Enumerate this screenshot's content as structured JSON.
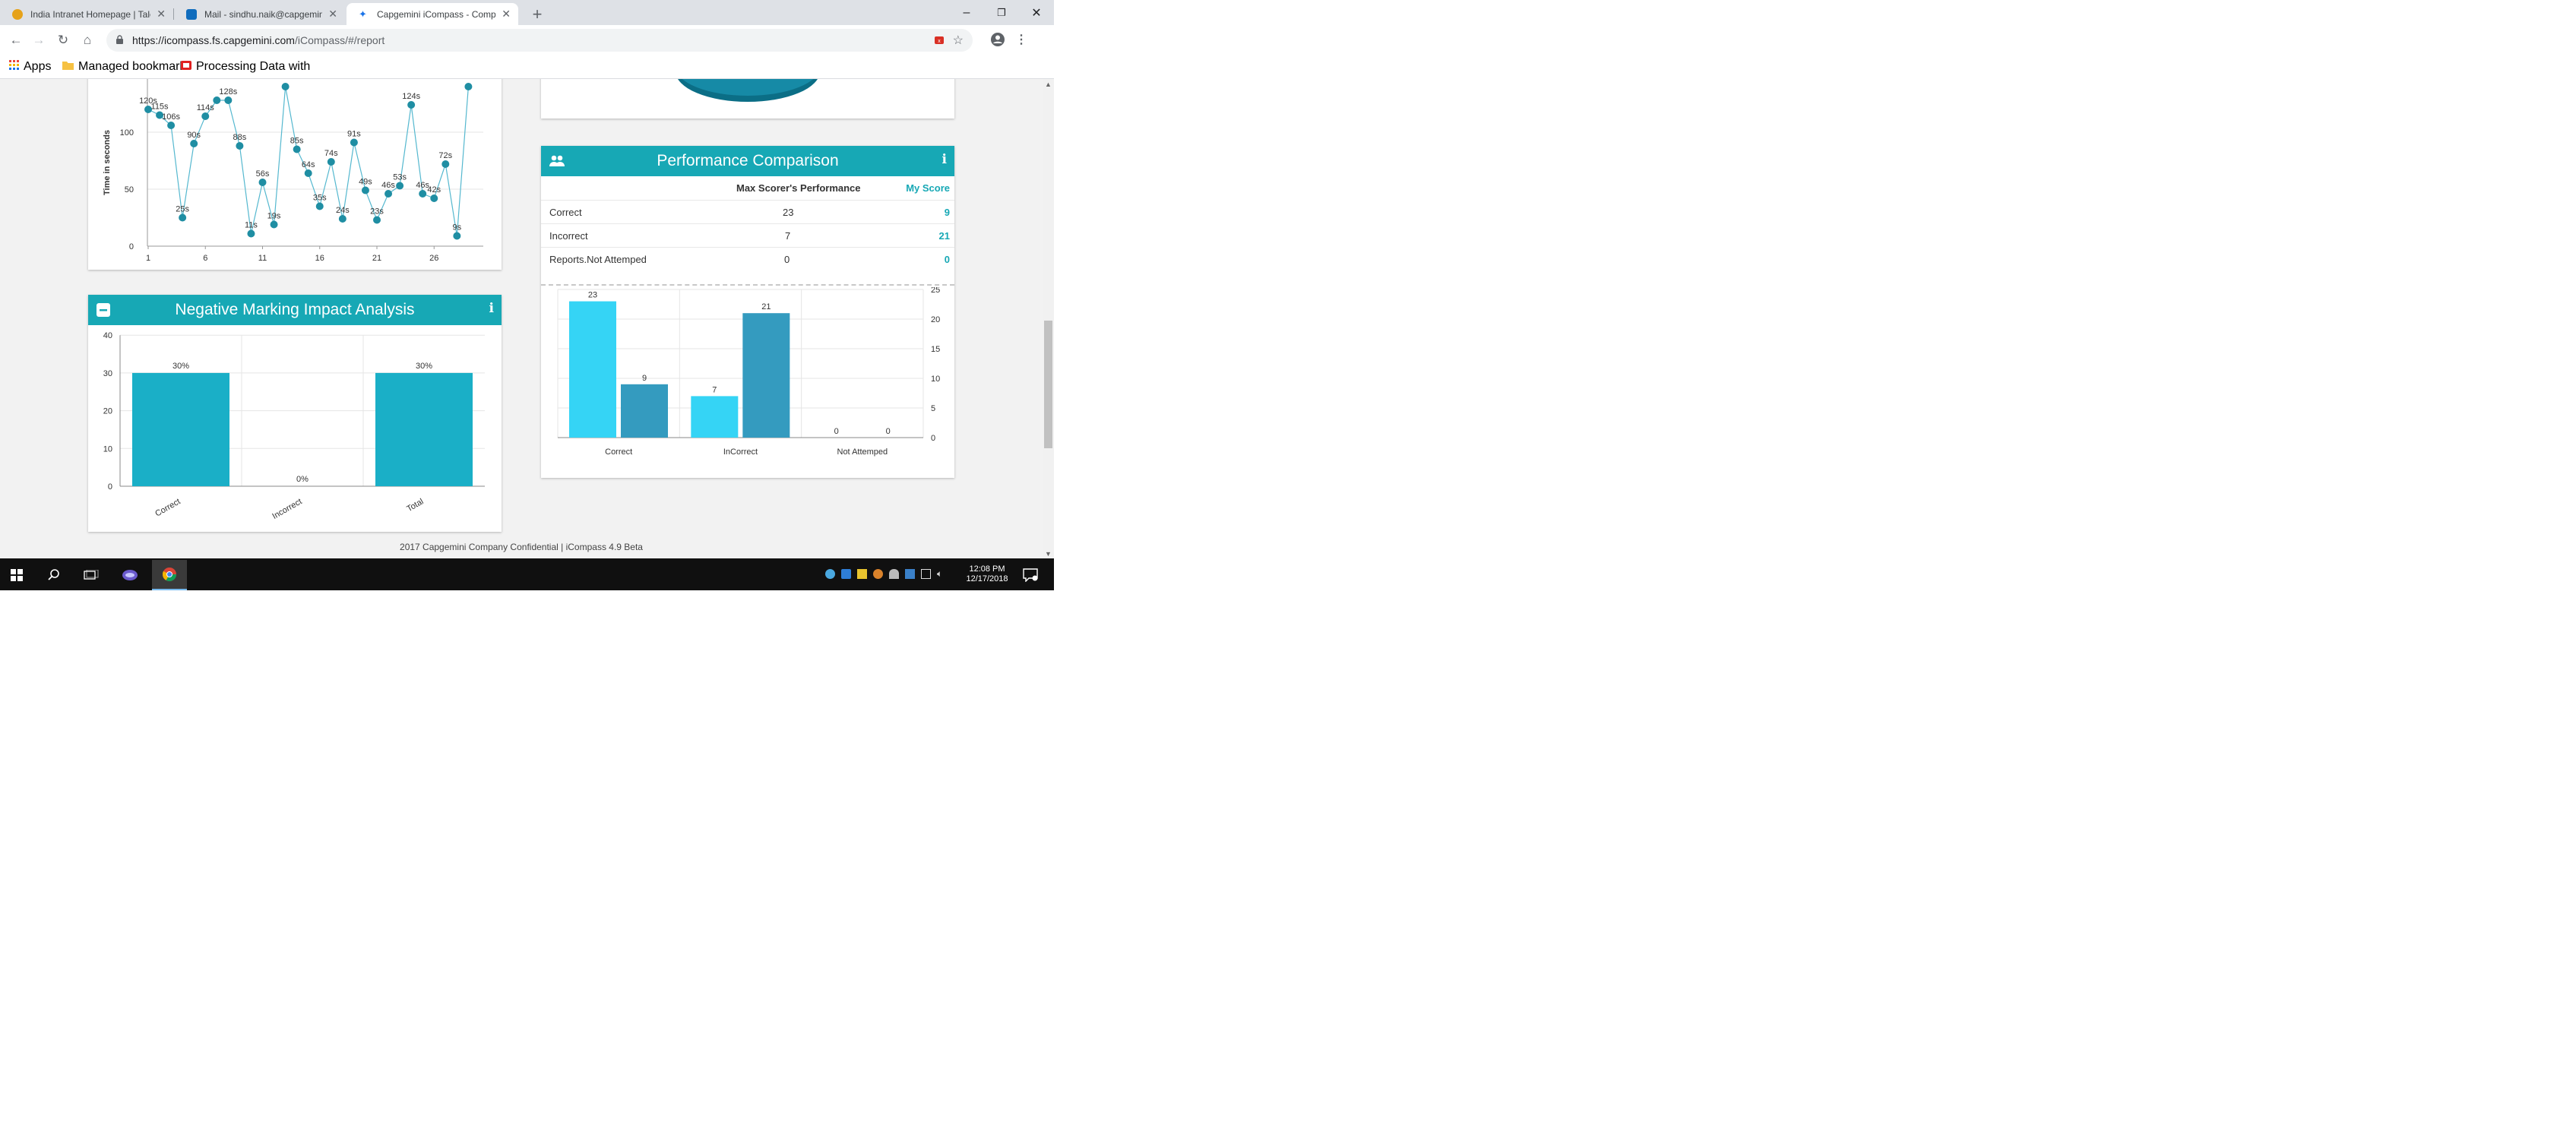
{
  "browser": {
    "tabs": [
      {
        "label": "India Intranet Homepage | Talent",
        "active": false
      },
      {
        "label": "Mail - sindhu.naik@capgemini.co",
        "active": false
      },
      {
        "label": "Capgemini iCompass - Competency",
        "active": true
      }
    ],
    "new_tab": "+",
    "url_host": "https://icompass.fs.capgemini.com",
    "url_path": "/iCompass/#/report",
    "bookmarks": [
      {
        "label": "Apps",
        "icon": "apps-grid-icon"
      },
      {
        "label": "Managed bookmarks",
        "icon": "folder-icon"
      },
      {
        "label": "Processing Data with",
        "icon": "bookmark-red-icon"
      }
    ],
    "window_controls": [
      "–",
      "❐",
      "✕"
    ]
  },
  "time_chart": {
    "ylabel": "Time in seconds",
    "y_ticks": [
      "0",
      "50",
      "100"
    ],
    "x_ticks": [
      "1",
      "6",
      "11",
      "16",
      "21",
      "26"
    ]
  },
  "negative_marking": {
    "title": "Negative Marking Impact Analysis",
    "info_icon": "i"
  },
  "performance": {
    "title": "Performance Comparison",
    "info_icon": "i",
    "col_max": "Max Scorer's Performance",
    "col_my": "My Score",
    "rows": [
      {
        "label": "Correct",
        "max": "23",
        "mine": "9"
      },
      {
        "label": "Incorrect",
        "max": "7",
        "mine": "21"
      },
      {
        "label": "Reports.Not Attemped",
        "max": "0",
        "mine": "0"
      }
    ]
  },
  "chart_data": [
    {
      "type": "line",
      "ylabel": "Time in seconds",
      "x_ticks": [
        1,
        6,
        11,
        16,
        21,
        26
      ],
      "ylim": [
        0,
        130
      ],
      "points": [
        {
          "x": 1,
          "y": 120,
          "label": "120s"
        },
        {
          "x": 2,
          "y": 115,
          "label": "115s"
        },
        {
          "x": 3,
          "y": 106,
          "label": "106s"
        },
        {
          "x": 4,
          "y": 25,
          "label": "25s"
        },
        {
          "x": 5,
          "y": 90,
          "label": "90s"
        },
        {
          "x": 6,
          "y": 114,
          "label": "114s"
        },
        {
          "x": 7,
          "y": 128,
          "label": ""
        },
        {
          "x": 8,
          "y": 128,
          "label": "128s"
        },
        {
          "x": 9,
          "y": 88,
          "label": "88s"
        },
        {
          "x": 10,
          "y": 11,
          "label": "11s"
        },
        {
          "x": 11,
          "y": 56,
          "label": "56s"
        },
        {
          "x": 12,
          "y": 19,
          "label": "19s"
        },
        {
          "x": 13,
          "y": 140,
          "label": ""
        },
        {
          "x": 14,
          "y": 85,
          "label": "85s"
        },
        {
          "x": 15,
          "y": 64,
          "label": "64s"
        },
        {
          "x": 16,
          "y": 35,
          "label": "35s"
        },
        {
          "x": 17,
          "y": 74,
          "label": "74s"
        },
        {
          "x": 18,
          "y": 24,
          "label": "24s"
        },
        {
          "x": 19,
          "y": 91,
          "label": "91s"
        },
        {
          "x": 20,
          "y": 49,
          "label": "49s"
        },
        {
          "x": 21,
          "y": 23,
          "label": "23s"
        },
        {
          "x": 22,
          "y": 46,
          "label": "46s"
        },
        {
          "x": 23,
          "y": 53,
          "label": "53s"
        },
        {
          "x": 24,
          "y": 124,
          "label": "124s"
        },
        {
          "x": 25,
          "y": 46,
          "label": "46s"
        },
        {
          "x": 26,
          "y": 42,
          "label": "42s"
        },
        {
          "x": 27,
          "y": 72,
          "label": "72s"
        },
        {
          "x": 28,
          "y": 9,
          "label": "9s"
        },
        {
          "x": 29,
          "y": 140,
          "label": ""
        }
      ],
      "color": "#1f8ea3"
    },
    {
      "type": "bar",
      "categories": [
        "Correct",
        "Incorrect",
        "Total"
      ],
      "values": [
        30,
        0,
        30
      ],
      "value_labels": [
        "30%",
        "0%",
        "30%"
      ],
      "ylim": [
        0,
        40
      ],
      "y_ticks": [
        0,
        10,
        20,
        30,
        40
      ],
      "color": "#1aafc7"
    },
    {
      "type": "bar",
      "categories": [
        "Correct",
        "InCorrect",
        "Not Attemped"
      ],
      "series": [
        {
          "values": [
            23,
            7,
            0
          ],
          "color": "#35d4f5"
        },
        {
          "values": [
            9,
            21,
            0
          ],
          "color": "#349bbf"
        }
      ],
      "ylim": [
        0,
        25
      ],
      "y_ticks": [
        0,
        5,
        10,
        15,
        20,
        25
      ],
      "y_axis_side": "right"
    }
  ],
  "footer": {
    "text": "2017 Capgemini Company Confidential | iCompass 4.9 Beta"
  },
  "taskbar": {
    "time": "12:08 PM",
    "date": "12/17/2018"
  },
  "colors": {
    "accent": "#17a8b5"
  }
}
